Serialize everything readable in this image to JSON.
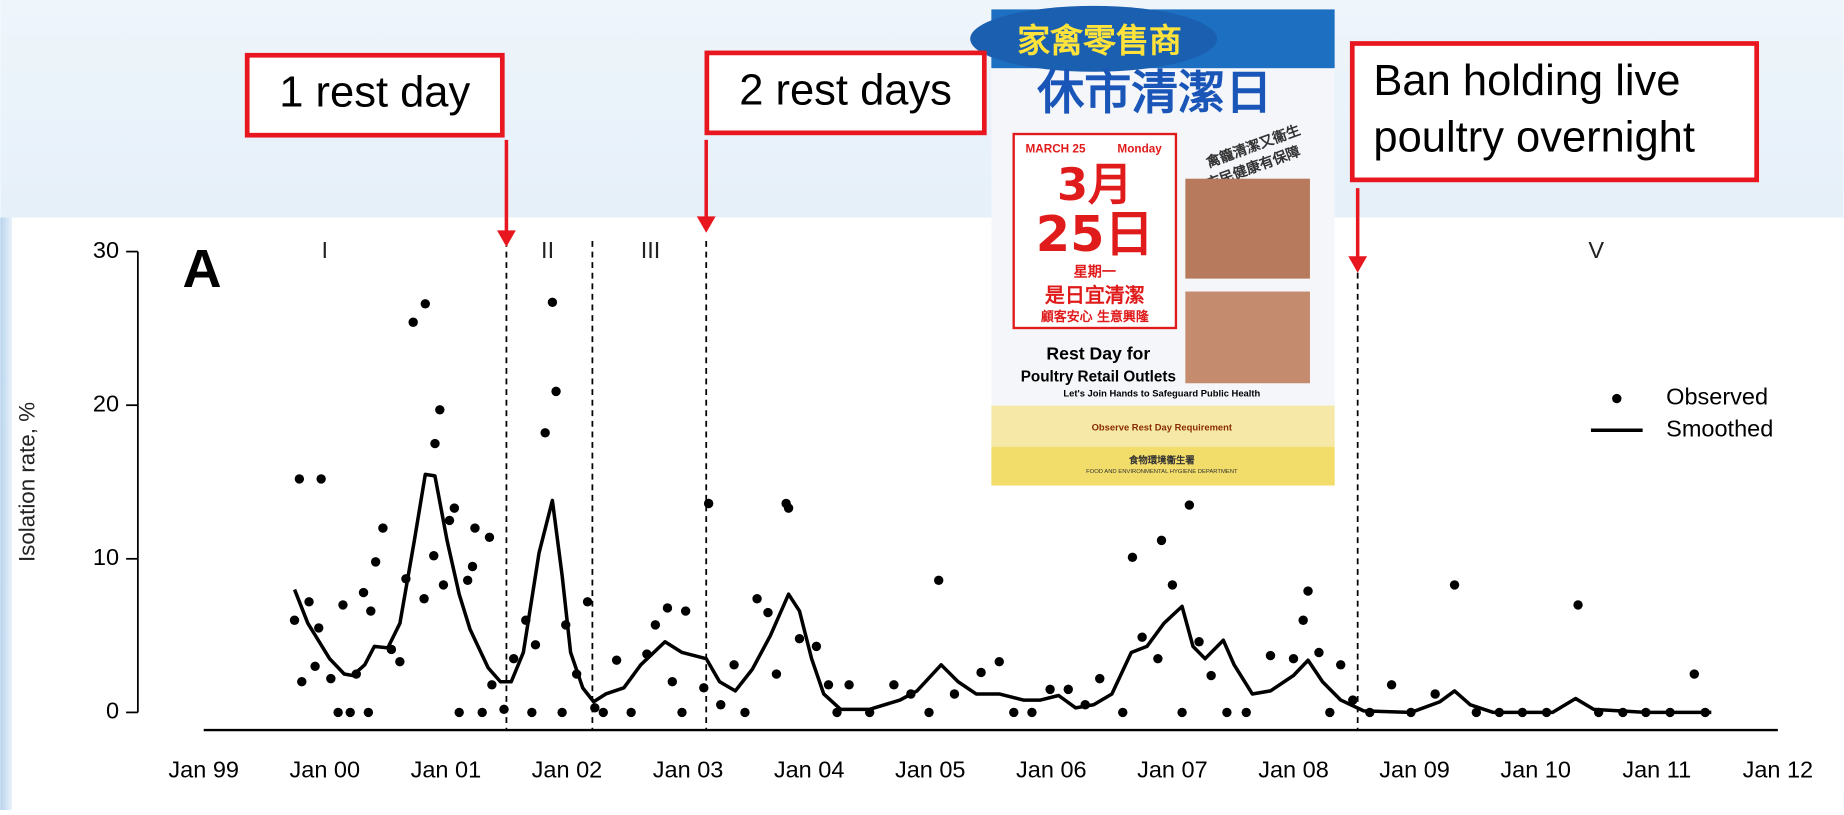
{
  "chart_data": {
    "type": "scatter",
    "panel_label": "A",
    "y_label": "Isolation rate, %",
    "xlim": [
      1999,
      2012
    ],
    "xticks": [
      {
        "value": 1999,
        "label": "Jan 99"
      },
      {
        "value": 2000,
        "label": "Jan 00"
      },
      {
        "value": 2001,
        "label": "Jan 01"
      },
      {
        "value": 2002,
        "label": "Jan 02"
      },
      {
        "value": 2003,
        "label": "Jan 03"
      },
      {
        "value": 2004,
        "label": "Jan 04"
      },
      {
        "value": 2005,
        "label": "Jan 05"
      },
      {
        "value": 2006,
        "label": "Jan 06"
      },
      {
        "value": 2007,
        "label": "Jan 07"
      },
      {
        "value": 2008,
        "label": "Jan 08"
      },
      {
        "value": 2009,
        "label": "Jan 09"
      },
      {
        "value": 2010,
        "label": "Jan 10"
      },
      {
        "value": 2011,
        "label": "Jan 11"
      },
      {
        "value": 2012,
        "label": "Jan 12"
      }
    ],
    "ylim": [
      0,
      30
    ],
    "yticks": [
      0,
      10,
      20,
      30
    ],
    "dividers": [
      2001.5,
      2002.21,
      2003.15,
      2008.53
    ],
    "phase_labels": [
      {
        "label": "I",
        "x": 2000.0
      },
      {
        "label": "II",
        "x": 2001.84
      },
      {
        "label": "III",
        "x": 2002.69
      },
      {
        "label": "V",
        "x": 2010.5
      }
    ],
    "annotations": [
      {
        "lines": [
          "1 rest day"
        ],
        "x": 2001.5
      },
      {
        "lines": [
          "2 rest days"
        ],
        "x": 2003.15
      },
      {
        "lines": [
          "Ban holding live",
          "poultry overnight"
        ],
        "x": 2008.53
      }
    ],
    "legend": "right",
    "series": [
      {
        "name": "Observed",
        "type": "scatter",
        "color": "#000000",
        "x": [
          1999.79,
          1999.97,
          1999.75,
          1999.87,
          1999.81,
          1999.92,
          1999.95,
          2000.05,
          2000.11,
          2000.15,
          2000.21,
          2000.26,
          2000.32,
          2000.36,
          2000.38,
          2000.42,
          2000.48,
          2000.55,
          2000.62,
          2000.67,
          2000.73,
          2000.83,
          2000.82,
          2000.91,
          2000.95,
          2000.9,
          2000.98,
          2001.03,
          2001.07,
          2001.11,
          2001.18,
          2001.22,
          2001.24,
          2001.3,
          2001.36,
          2001.38,
          2001.48,
          2001.56,
          2001.66,
          2001.71,
          2001.74,
          2001.82,
          2001.88,
          2001.91,
          2001.96,
          2001.99,
          2002.08,
          2002.17,
          2002.23,
          2002.3,
          2002.41,
          2002.53,
          2002.66,
          2002.73,
          2002.83,
          2002.87,
          2002.95,
          2002.98,
          2003.13,
          2003.17,
          2003.27,
          2003.38,
          2003.47,
          2003.57,
          2003.66,
          2003.73,
          2003.81,
          2003.83,
          2003.92,
          2004.06,
          2004.16,
          2004.23,
          2004.33,
          2004.5,
          2004.7,
          2004.84,
          2004.99,
          2005.07,
          2005.2,
          2005.42,
          2005.57,
          2005.69,
          2005.84,
          2005.99,
          2006.14,
          2006.28,
          2006.4,
          2006.59,
          2006.67,
          2006.75,
          2006.88,
          2006.91,
          2007.0,
          2007.08,
          2007.14,
          2007.22,
          2007.32,
          2007.45,
          2007.61,
          2007.81,
          2008.0,
          2008.08,
          2008.12,
          2008.21,
          2008.3,
          2008.39,
          2008.49,
          2008.63,
          2008.81,
          2008.97,
          2009.17,
          2009.33,
          2009.51,
          2009.7,
          2009.89,
          2010.09,
          2010.35,
          2010.52,
          2010.72,
          2010.91,
          2011.11,
          2011.31,
          2011.4
        ],
        "values": [
          15.2,
          15.2,
          6.0,
          7.2,
          2.0,
          3.0,
          5.5,
          2.2,
          0,
          7.0,
          0,
          2.5,
          7.8,
          0,
          6.6,
          9.8,
          12.0,
          4.1,
          3.3,
          8.7,
          25.4,
          26.6,
          7.4,
          17.5,
          19.7,
          10.2,
          8.3,
          12.5,
          13.3,
          0,
          8.6,
          9.5,
          12.0,
          0,
          11.4,
          1.8,
          0.2,
          3.5,
          6.0,
          0,
          4.4,
          18.2,
          26.7,
          20.9,
          0,
          5.7,
          2.5,
          7.2,
          0.3,
          0,
          3.4,
          0,
          3.8,
          5.7,
          6.8,
          2.0,
          0,
          6.6,
          1.6,
          13.6,
          0.5,
          3.1,
          0,
          7.4,
          6.5,
          2.5,
          13.6,
          13.3,
          4.8,
          4.3,
          1.8,
          0,
          1.8,
          0,
          1.8,
          1.2,
          0,
          8.6,
          1.2,
          2.6,
          3.3,
          0,
          0,
          1.5,
          1.5,
          0.5,
          2.2,
          0,
          10.1,
          4.9,
          3.5,
          11.2,
          8.3,
          0,
          13.5,
          4.6,
          2.4,
          0,
          0,
          3.7,
          3.5,
          6.0,
          7.9,
          3.9,
          0,
          3.1,
          0.8,
          0,
          1.8,
          0,
          1.2,
          8.3,
          0,
          0,
          0,
          0,
          7.0,
          0,
          0,
          0,
          0,
          2.5,
          0
        ]
      },
      {
        "name": "Smoothed",
        "type": "line",
        "color": "#000000",
        "x": [
          1999.75,
          1999.86,
          2000.04,
          2000.16,
          2000.23,
          2000.33,
          2000.41,
          2000.52,
          2000.62,
          2000.74,
          2000.83,
          2000.91,
          2001.01,
          2001.11,
          2001.2,
          2001.35,
          2001.45,
          2001.54,
          2001.64,
          2001.77,
          2001.88,
          2001.96,
          2002.03,
          2002.13,
          2002.22,
          2002.32,
          2002.47,
          2002.61,
          2002.81,
          2002.95,
          2003.15,
          2003.26,
          2003.39,
          2003.53,
          2003.68,
          2003.83,
          2003.92,
          2004.02,
          2004.12,
          2004.26,
          2004.5,
          2004.75,
          2004.89,
          2005.09,
          2005.23,
          2005.38,
          2005.57,
          2005.77,
          2005.91,
          2006.06,
          2006.2,
          2006.35,
          2006.5,
          2006.66,
          2006.79,
          2006.93,
          2007.08,
          2007.17,
          2007.27,
          2007.42,
          2007.51,
          2007.66,
          2007.81,
          2008.0,
          2008.12,
          2008.24,
          2008.39,
          2008.58,
          2008.97,
          2009.21,
          2009.33,
          2009.46,
          2009.65,
          2010.14,
          2010.33,
          2010.48,
          2010.91,
          2011.45
        ],
        "values": [
          8.0,
          5.8,
          3.5,
          2.5,
          2.4,
          3.1,
          4.3,
          4.2,
          5.8,
          11.2,
          15.5,
          15.4,
          11.2,
          7.7,
          5.4,
          2.9,
          2.0,
          2.0,
          3.9,
          10.4,
          13.8,
          8.9,
          3.9,
          1.6,
          0.7,
          1.2,
          1.6,
          3.1,
          4.6,
          3.9,
          3.5,
          2.0,
          1.4,
          2.8,
          5.0,
          7.7,
          6.6,
          3.5,
          1.2,
          0.2,
          0.2,
          0.8,
          1.4,
          3.1,
          2.0,
          1.2,
          1.2,
          0.8,
          0.8,
          1.1,
          0.3,
          0.5,
          1.2,
          3.9,
          4.3,
          5.8,
          6.9,
          4.3,
          3.5,
          4.7,
          3.1,
          1.2,
          1.4,
          2.4,
          3.4,
          2.0,
          0.8,
          0.1,
          0,
          0.7,
          1.4,
          0.5,
          0,
          0,
          0.9,
          0.2,
          0,
          0
        ]
      }
    ]
  },
  "poster": {
    "header": "家禽零售商",
    "title": "休市清潔日",
    "date_en": "MARCH 25",
    "day_en": "Monday",
    "month_cn": "3月",
    "day_cn": "25日",
    "weekday_cn": "星期一",
    "slogan": "是日宜清潔",
    "slogan_sub": "顧客安心 生意興隆",
    "side_lines": [
      "禽籠清潔又衞生",
      "市民健康有保障"
    ],
    "en_title": [
      "Rest Day for",
      "Poultry Retail Outlets"
    ],
    "en_sub": "Let's Join Hands to Safeguard Public Health",
    "requirement": "Observe Rest Day Requirement",
    "dept_cn": "食物環境衞生署",
    "dept_en": "FOOD AND ENVIRONMENTAL HYGIENE DEPARTMENT"
  }
}
